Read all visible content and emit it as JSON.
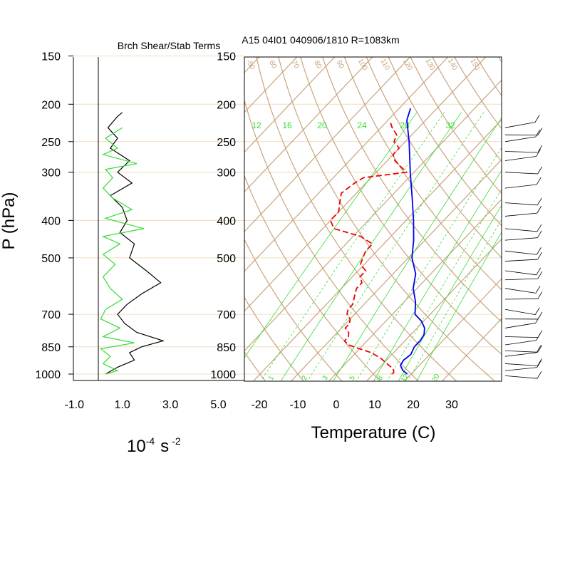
{
  "panel_left": {
    "title": "Brch Shear/Stab Terms",
    "ylabel": "P (hPa)",
    "xlabel_base": "10",
    "xlabel_exp": "-4",
    "xlabel_unit": "s",
    "xlabel_unit_exp": "-2"
  },
  "panel_right": {
    "title": "A15 04I01 040906/1810 R=1083km",
    "xlabel": "Temperature (C)"
  },
  "colors": {
    "isotherm": "#c8a47e",
    "pressure_line": "#f0dcc0",
    "mixing_ratio": "#33dd33",
    "temperature": "#0000ee",
    "dewpoint": "#ee0000",
    "shear": "#000000",
    "stability": "#33dd33"
  },
  "chart_data": [
    {
      "type": "line",
      "name": "Brch Shear/Stab Terms",
      "xlim": [
        -1.0,
        5.0
      ],
      "xticks": [
        "-1.0",
        "1.0",
        "3.0",
        "5.0"
      ],
      "yticks": [
        "150",
        "200",
        "250",
        "300",
        "400",
        "500",
        "700",
        "850",
        "1000"
      ],
      "y_scale": "log pressure",
      "series": [
        {
          "color": "black",
          "p": [
            210,
            215,
            230,
            245,
            260,
            280,
            300,
            320,
            345,
            370,
            400,
            430,
            460,
            500,
            540,
            580,
            620,
            660,
            700,
            740,
            780,
            820,
            850,
            880,
            920,
            960,
            1000
          ],
          "x": [
            1.0,
            0.8,
            0.4,
            0.8,
            0.5,
            1.3,
            0.8,
            1.4,
            0.5,
            1.0,
            1.2,
            0.9,
            1.5,
            1.3,
            2.0,
            2.6,
            1.8,
            1.2,
            0.8,
            1.1,
            1.6,
            2.7,
            1.8,
            1.3,
            1.5,
            0.8,
            0.3
          ]
        },
        {
          "color": "green",
          "p": [
            230,
            245,
            260,
            270,
            285,
            295,
            310,
            330,
            350,
            375,
            395,
            420,
            440,
            460,
            490,
            520,
            560,
            600,
            640,
            680,
            720,
            760,
            800,
            830,
            860,
            900,
            940,
            980,
            1000
          ],
          "x": [
            1.0,
            0.3,
            0.8,
            0.2,
            1.6,
            0.3,
            0.6,
            0.2,
            0.6,
            1.4,
            0.3,
            1.9,
            0.2,
            0.9,
            0.2,
            0.7,
            0.2,
            0.5,
            1.0,
            0.3,
            0.1,
            0.9,
            0.2,
            1.5,
            0.1,
            0.5,
            0.2,
            0.8,
            0.3
          ]
        }
      ]
    },
    {
      "type": "line",
      "name": "Skew-T",
      "xlim": [
        -20,
        40
      ],
      "xticks": [
        "-20",
        "-10",
        "0",
        "10",
        "20",
        "30"
      ],
      "yticks": [
        "150",
        "200",
        "250",
        "300",
        "400",
        "500",
        "700",
        "850",
        "1000"
      ],
      "y_scale": "log pressure",
      "mixing_ratio_labels": [
        "12",
        "16",
        "20",
        "24",
        "28",
        "32"
      ],
      "mixing_ratio_bottom_labels": [
        "1",
        "2",
        "3",
        "5",
        "8",
        "12",
        "20"
      ],
      "isotherm_labels": [
        "-50",
        "60",
        "70",
        "80",
        "90",
        "100",
        "110",
        "120",
        "130",
        "140",
        "150"
      ],
      "series": [
        {
          "color": "blue",
          "p": [
            1000,
            980,
            950,
            920,
            890,
            850,
            820,
            790,
            760,
            730,
            700,
            650,
            600,
            550,
            500,
            450,
            400,
            350,
            300,
            250,
            220,
            205
          ],
          "t": [
            29,
            27,
            25,
            24.5,
            25,
            24,
            24,
            23.5,
            22,
            19.5,
            16,
            13,
            9,
            6,
            1,
            -3,
            -8,
            -14,
            -21,
            -29,
            -35,
            -37
          ]
        },
        {
          "color": "red",
          "p": [
            1000,
            990,
            970,
            940,
            910,
            880,
            860,
            840,
            820,
            800,
            780,
            760,
            740,
            720,
            700,
            680,
            660,
            640,
            620,
            600,
            580,
            560,
            540,
            520,
            500,
            480,
            460,
            440,
            420,
            400,
            380,
            360,
            340,
            320,
            310,
            300,
            290,
            280,
            270,
            260,
            250,
            240,
            230,
            222
          ],
          "t": [
            25,
            25,
            24,
            21,
            18,
            14,
            10,
            6,
            4,
            4,
            3,
            1,
            1,
            0,
            -2,
            -3,
            -3,
            -4,
            -5,
            -6,
            -6,
            -8,
            -8,
            -11,
            -12,
            -13,
            -13,
            -18,
            -27,
            -30,
            -30,
            -32,
            -34,
            -33,
            -32,
            -22,
            -25,
            -28,
            -30,
            -30,
            -33,
            -34,
            -37,
            -39
          ]
        }
      ]
    }
  ]
}
